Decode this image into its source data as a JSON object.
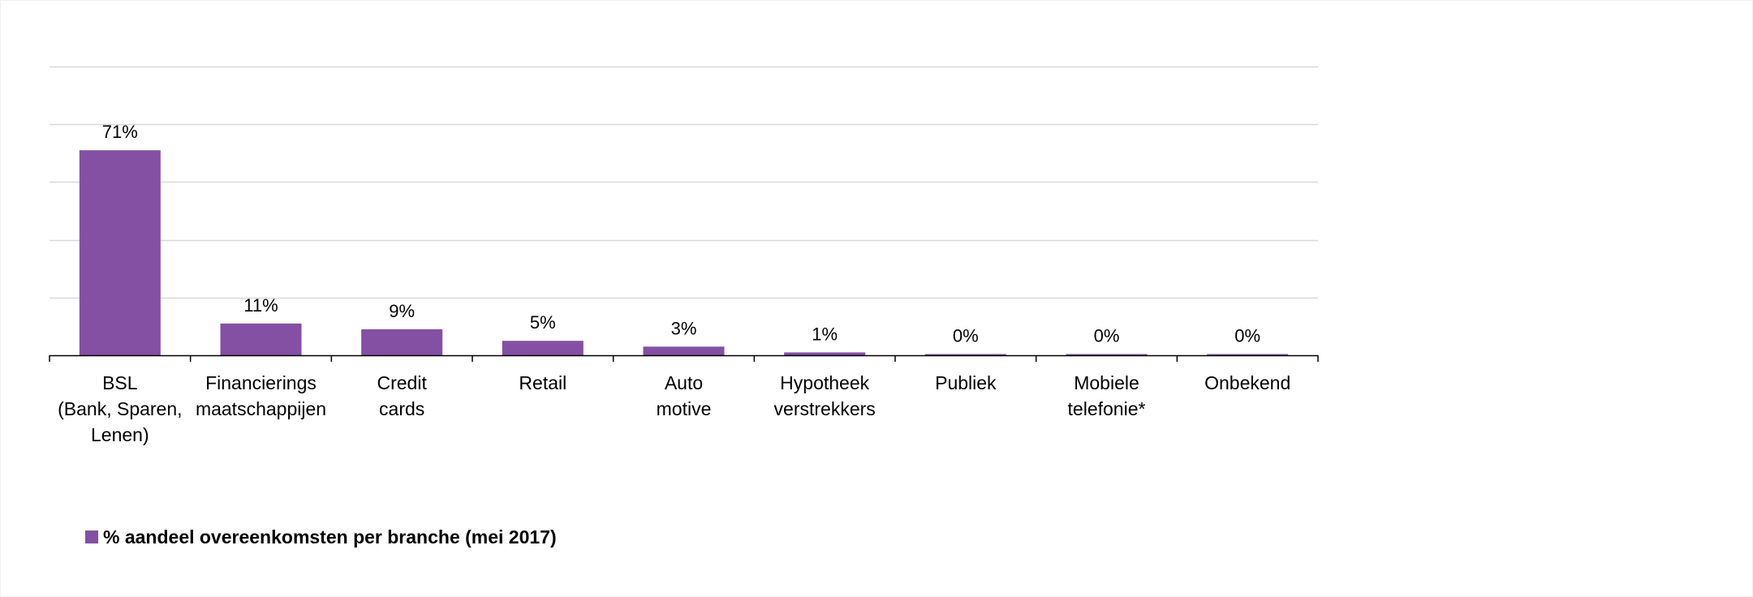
{
  "chart_data": {
    "type": "bar",
    "categories": [
      [
        "BSL",
        "(Bank, Sparen,",
        "Lenen)"
      ],
      [
        "Financierings",
        "maatschappijen"
      ],
      [
        "Credit",
        "cards"
      ],
      [
        "Retail"
      ],
      [
        "Auto",
        "motive"
      ],
      [
        "Hypotheek",
        "verstrekkers"
      ],
      [
        "Publiek"
      ],
      [
        "Mobiele",
        "telefonie*"
      ],
      [
        "Onbekend"
      ]
    ],
    "series": [
      {
        "name": "% aandeel overeenkomsten per branche (mei 2017)",
        "values": [
          71,
          11,
          9,
          5,
          3,
          1,
          0,
          0,
          0
        ],
        "labels": [
          "71%",
          "11%",
          "9%",
          "5%",
          "3%",
          "1%",
          "0%",
          "0%",
          "0%"
        ],
        "color": "#8350A3"
      }
    ],
    "ylim": [
      0,
      100
    ],
    "grid": true,
    "legend_position": "bottom-left",
    "title": "",
    "xlabel": "",
    "ylabel": ""
  }
}
